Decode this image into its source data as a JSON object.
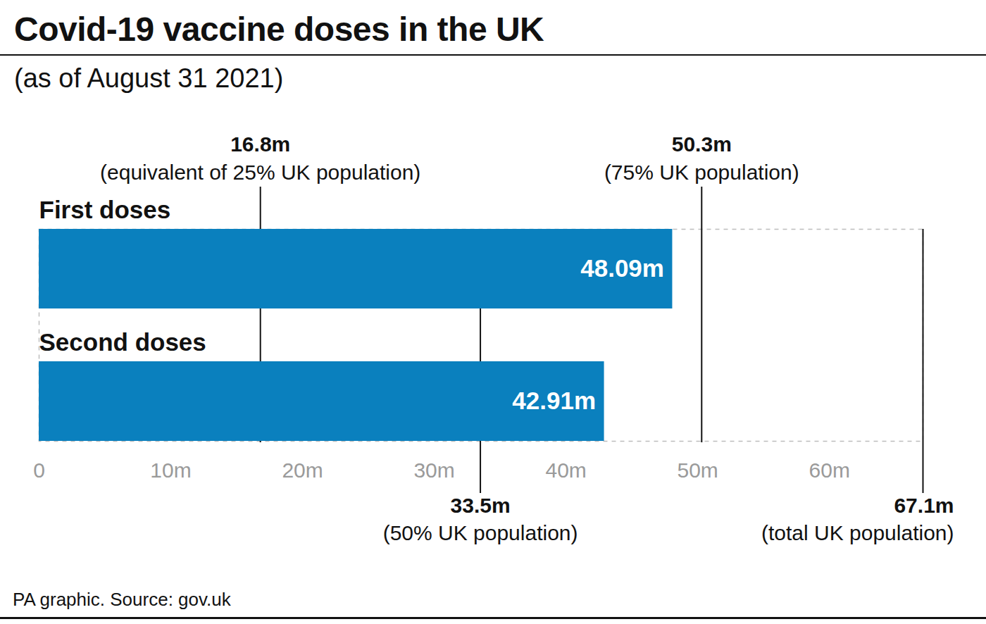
{
  "chart_data": {
    "type": "bar",
    "orientation": "horizontal",
    "title": "Covid-19 vaccine doses in the UK",
    "subtitle": "(as of August 31 2021)",
    "source": "PA graphic. Source: gov.uk",
    "categories": [
      "First doses",
      "Second doses"
    ],
    "values": [
      48.09,
      42.91
    ],
    "value_labels": [
      "48.09m",
      "42.91m"
    ],
    "data_labels": true,
    "color": "#0a80be",
    "xlim": [
      0,
      67.1
    ],
    "xticks": [
      0,
      {
        "value": 10,
        "label": "10m"
      },
      {
        "value": 20,
        "label": "20m"
      },
      {
        "value": 30,
        "label": "30m"
      },
      {
        "value": 40,
        "label": "40m"
      },
      {
        "value": 50,
        "label": "50m"
      },
      {
        "value": 60,
        "label": "60m"
      }
    ],
    "grid": false,
    "annotations": [
      {
        "value": 16.8,
        "label": "16.8m",
        "text": "(equivalent of 25% UK population)"
      },
      {
        "value": 33.5,
        "label": "33.5m",
        "text": "(50% UK population)"
      },
      {
        "value": 50.3,
        "label": "50.3m",
        "text": "(75% UK population)"
      },
      {
        "value": 67.1,
        "label": "67.1m",
        "text": "(total UK population)"
      }
    ]
  }
}
